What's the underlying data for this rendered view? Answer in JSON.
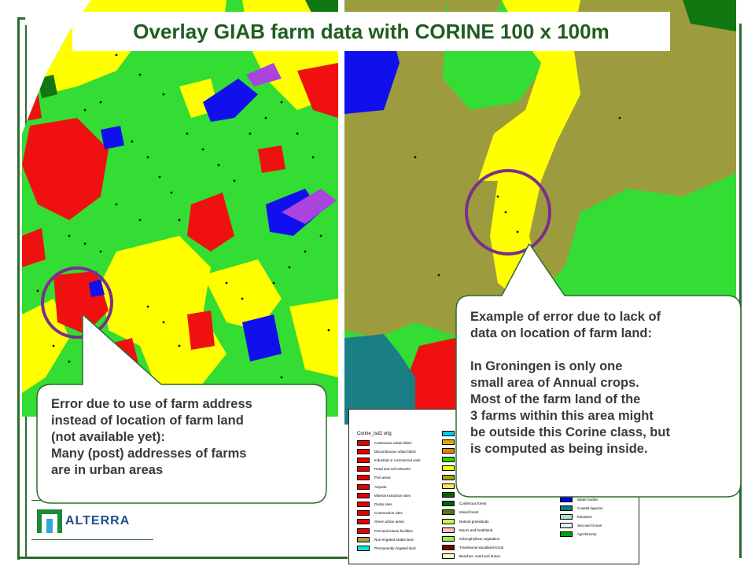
{
  "title": "Overlay GIAB farm data with CORINE 100 x 100m",
  "legend": {
    "title": "Corine_lsd2 orig",
    "col1": [
      {
        "label": "Continuous urban fabric",
        "color": "#e60000"
      },
      {
        "label": "Discontinuous urban fabric",
        "color": "#e60000"
      },
      {
        "label": "Industrial or commercial units",
        "color": "#e60000"
      },
      {
        "label": "Road and rail networks",
        "color": "#e60000"
      },
      {
        "label": "Port areas",
        "color": "#e60000"
      },
      {
        "label": "Airports",
        "color": "#e60000"
      },
      {
        "label": "Mineral extraction sites",
        "color": "#e60000"
      },
      {
        "label": "Dump sites",
        "color": "#e60000"
      },
      {
        "label": "Construction sites",
        "color": "#e60000"
      },
      {
        "label": "Green urban areas",
        "color": "#e60000"
      },
      {
        "label": "Port and leisure facilities",
        "color": "#e60000"
      },
      {
        "label": "Non-irrigated arable land",
        "color": "#a0a050"
      },
      {
        "label": "Permanently irrigated land",
        "color": "#00e6e6"
      }
    ],
    "col2": [
      {
        "label": "",
        "color": "#00ccf2"
      },
      {
        "label": "",
        "color": "#e6a600"
      },
      {
        "label": "",
        "color": "#e68000"
      },
      {
        "label": "",
        "color": "#33cc00"
      },
      {
        "label": "",
        "color": "#ffff00"
      },
      {
        "label": "",
        "color": "#a6a600"
      },
      {
        "label": "",
        "color": "#ffe64d"
      },
      {
        "label": "",
        "color": "#006600"
      },
      {
        "label": "Coniferous forest",
        "color": "#006600"
      },
      {
        "label": "Mixed forest",
        "color": "#4d8000"
      },
      {
        "label": "Natural grasslands",
        "color": "#ccf24d"
      },
      {
        "label": "Moors and heathland",
        "color": "#ffc0c0"
      },
      {
        "label": "Sclerophyllous vegetation",
        "color": "#a6e64d"
      },
      {
        "label": "Transitional woodland-scrub",
        "color": "#800000"
      },
      {
        "label": "Beaches, sand and dunes",
        "color": "#ffffc0"
      }
    ],
    "col3": [
      {
        "label": "Water bodies",
        "color": "#0000e6"
      },
      {
        "label": "Coastal lagoons",
        "color": "#008080"
      },
      {
        "label": "Estuaries",
        "color": "#a6e6cc"
      },
      {
        "label": "Sea and Ocean",
        "color": "#e6f2ff"
      },
      {
        "label": "Agroforestry",
        "color": "#00a600"
      }
    ]
  },
  "callout_left": {
    "lines": [
      "Error due to use of farm address",
      "instead of location of farm land",
      "(not available yet):",
      "Many (post) addresses of farms",
      "are in urban areas"
    ]
  },
  "callout_right": {
    "lines": [
      "Example of error due to lack of",
      "data on location of farm land:",
      "",
      "In Groningen is only one",
      "small area of Annual crops.",
      "Most of the farm land of the",
      "3 farms within this area might",
      "be outside this Corine class, but",
      "is computed as being inside."
    ]
  },
  "logo": {
    "text": "ALTERRA"
  },
  "colors": {
    "urban": "#f01010",
    "arable": "#ffff00",
    "pasture": "#33dd33",
    "water": "#1010ee",
    "forest": "#117711",
    "heath": "#aa44dd",
    "olive": "#9c9c3e",
    "lagoon": "#1a7f84",
    "circle": "#7b2f8c",
    "title": "#1f5d1f",
    "frame": "#2e6b2e",
    "logo_blue": "#1d4f91"
  }
}
